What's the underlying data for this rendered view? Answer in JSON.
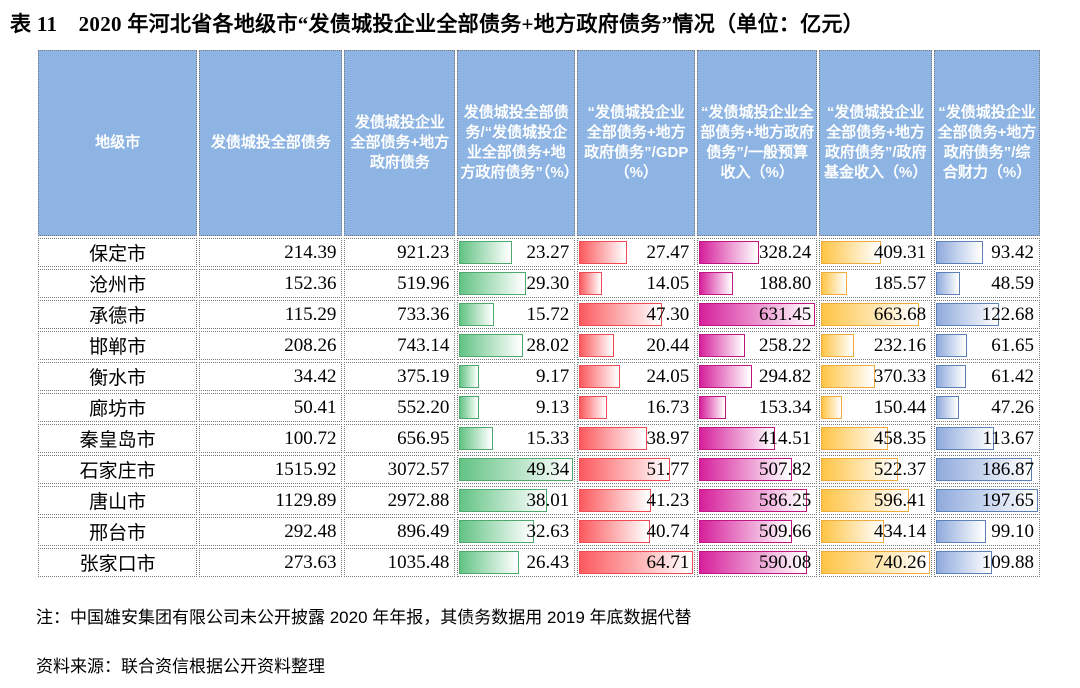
{
  "title": "表 11　2020 年河北省各地级市“发债城投企业全部债务+地方政府债务”情况（单位：亿元）",
  "note": "注：中国雄安集团有限公司未公开披露 2020 年年报，其债务数据用 2019 年底数据代替",
  "source": "资料来源：联合资信根据公开资料整理",
  "colors": {
    "header_bg": "#8DB4E2",
    "header_text": "#FFFFFF",
    "cell_border": "#777777"
  },
  "bar_colors": {
    "green": {
      "fill": "#63C384",
      "border": "#4DA96C"
    },
    "red": {
      "fill": "#FB5A5E",
      "border": "#F04B55"
    },
    "magenta": {
      "fill": "#D6209B",
      "border": "#C01483"
    },
    "orange": {
      "fill": "#FFC445",
      "border": "#F0AC3C"
    },
    "blue": {
      "fill": "#8FAADC",
      "border": "#5C80B8"
    }
  },
  "table": {
    "columns": [
      {
        "key": "city",
        "label": "地级市"
      },
      {
        "key": "debt",
        "label": "发债城投全部债务"
      },
      {
        "key": "total",
        "label": "发债城投企业全部债务+地方政府债务"
      },
      {
        "key": "ratio",
        "label": "发债城投全部债务/“发债城投企业全部债务+地方政府债务”（%）",
        "bar": "green"
      },
      {
        "key": "gdp",
        "label": "“发债城投企业全部债务+地方政府债务”/GDP（%）",
        "bar": "red"
      },
      {
        "key": "budget",
        "label": "“发债城投企业全部债务+地方政府债务”/一般预算收入（%）",
        "bar": "magenta"
      },
      {
        "key": "fund",
        "label": "“发债城投企业全部债务+地方政府债务”/政府基金收入（%）",
        "bar": "orange"
      },
      {
        "key": "fiscal",
        "label": "“发债城投企业全部债务+地方政府债务”/综合财力（%）",
        "bar": "blue"
      }
    ],
    "rows": [
      [
        "保定市",
        "214.39",
        "921.23",
        "23.27",
        "27.47",
        "328.24",
        "409.31",
        "93.42"
      ],
      [
        "沧州市",
        "152.36",
        "519.96",
        "29.30",
        "14.05",
        "188.80",
        "185.57",
        "48.59"
      ],
      [
        "承德市",
        "115.29",
        "733.36",
        "15.72",
        "47.30",
        "631.45",
        "663.68",
        "122.68"
      ],
      [
        "邯郸市",
        "208.26",
        "743.14",
        "28.02",
        "20.44",
        "258.22",
        "232.16",
        "61.65"
      ],
      [
        "衡水市",
        "34.42",
        "375.19",
        "9.17",
        "24.05",
        "294.82",
        "370.33",
        "61.42"
      ],
      [
        "廊坊市",
        "50.41",
        "552.20",
        "9.13",
        "16.73",
        "153.34",
        "150.44",
        "47.26"
      ],
      [
        "秦皇岛市",
        "100.72",
        "656.95",
        "15.33",
        "38.97",
        "414.51",
        "458.35",
        "113.67"
      ],
      [
        "石家庄市",
        "1515.92",
        "3072.57",
        "49.34",
        "51.77",
        "507.82",
        "522.37",
        "186.87"
      ],
      [
        "唐山市",
        "1129.89",
        "2972.88",
        "38.01",
        "41.23",
        "586.25",
        "596.41",
        "197.65"
      ],
      [
        "邢台市",
        "292.48",
        "896.49",
        "32.63",
        "40.74",
        "509.66",
        "434.14",
        "99.10"
      ],
      [
        "张家口市",
        "273.63",
        "1035.48",
        "26.43",
        "64.71",
        "590.08",
        "740.26",
        "109.88"
      ]
    ]
  }
}
